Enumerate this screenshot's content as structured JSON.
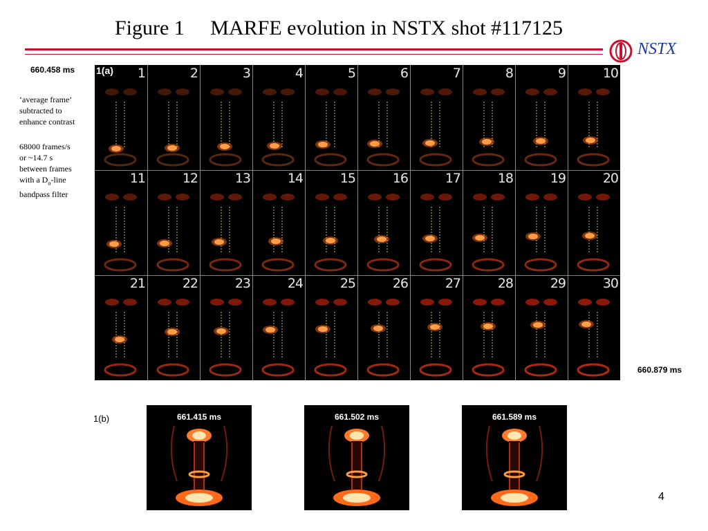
{
  "header": {
    "title": "Figure 1     MARFE evolution in NSTX shot #117125",
    "logo_text": "NSTX"
  },
  "panel_a": {
    "label": "1(a)",
    "start_time": "660.458 ms",
    "end_time": "660.879 ms",
    "frame_numbers": [
      "1",
      "2",
      "3",
      "4",
      "5",
      "6",
      "7",
      "8",
      "9",
      "10",
      "11",
      "12",
      "13",
      "14",
      "15",
      "16",
      "17",
      "18",
      "19",
      "20",
      "21",
      "22",
      "23",
      "24",
      "25",
      "26",
      "27",
      "28",
      "29",
      "30"
    ]
  },
  "notes": {
    "contrast": "‘average frame’\nsubtracted to\nenhance contrast",
    "rate_prefix": "68000 frames/s\nor  ~14.7 s\nbetween frames\nwith  a D",
    "rate_subscript": "α",
    "rate_suffix": "-line\nbandpass filter"
  },
  "panel_b": {
    "label": "1(b)",
    "frames": [
      {
        "time": "661.415 ms"
      },
      {
        "time": "661.502 ms"
      },
      {
        "time": "661.589 ms"
      }
    ]
  },
  "page_number": "4",
  "colors": {
    "accent": "#c8102e",
    "logo_blue": "#1a3aa6"
  }
}
